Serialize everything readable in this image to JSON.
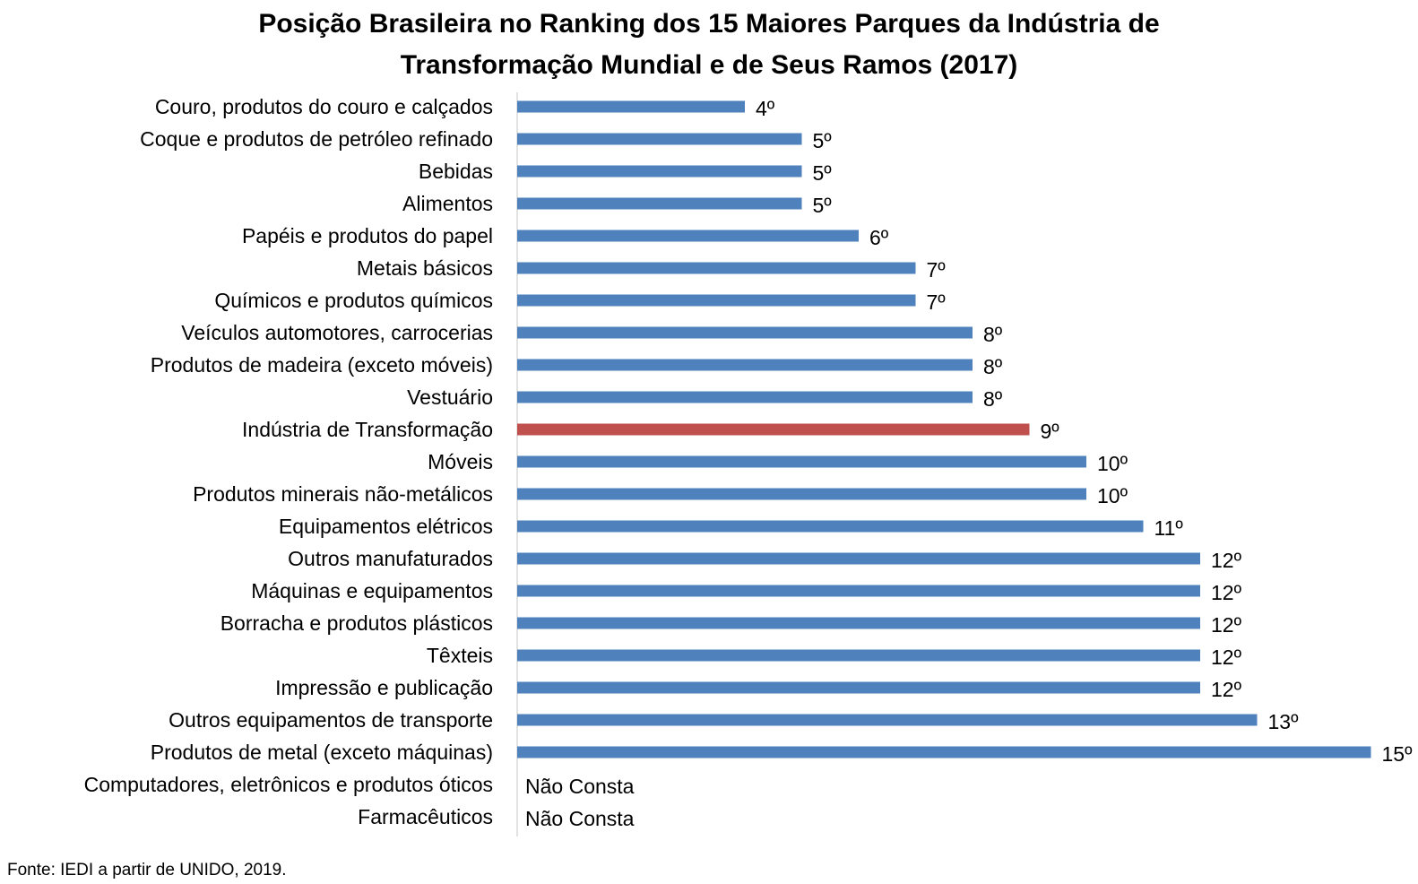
{
  "chart_data": {
    "type": "bar",
    "orientation": "horizontal",
    "title": "Posição Brasileira no Ranking dos 15 Maiores Parques da Indústria de Transformação Mundial e de Seus Ramos (2017)",
    "title_lines": [
      "Posição Brasileira no Ranking dos 15 Maiores Parques da Indústria de",
      "Transformação Mundial e de Seus Ramos (2017)"
    ],
    "xlabel": "",
    "ylabel": "",
    "xlim": [
      0,
      15
    ],
    "grid": false,
    "legend": "none",
    "colors": {
      "default": "#4F81BD",
      "highlight": "#C0504D"
    },
    "categories": [
      "Couro, produtos do couro e calçados",
      "Coque e produtos de petróleo refinado",
      "Bebidas",
      "Alimentos",
      "Papéis e produtos do papel",
      "Metais básicos",
      "Químicos e produtos químicos",
      "Veículos automotores, carrocerias",
      "Produtos de madeira (exceto móveis)",
      "Vestuário",
      "Indústria de Transformação",
      "Móveis",
      "Produtos minerais não-metálicos",
      "Equipamentos elétricos",
      "Outros manufaturados",
      "Máquinas e equipamentos",
      "Borracha e produtos plásticos",
      "Têxteis",
      "Impressão e publicação",
      "Outros equipamentos de transporte",
      "Produtos de metal (exceto máquinas)",
      "Computadores, eletrônicos e produtos óticos",
      "Farmacêuticos"
    ],
    "values": [
      4,
      5,
      5,
      5,
      6,
      7,
      7,
      8,
      8,
      8,
      9,
      10,
      10,
      11,
      12,
      12,
      12,
      12,
      12,
      13,
      15,
      null,
      null
    ],
    "data_labels": [
      "4º",
      "5º",
      "5º",
      "5º",
      "6º",
      "7º",
      "7º",
      "8º",
      "8º",
      "8º",
      "9º",
      "10º",
      "10º",
      "11º",
      "12º",
      "12º",
      "12º",
      "12º",
      "12º",
      "13º",
      "15º",
      "Não Consta",
      "Não Consta"
    ],
    "highlight_category": "Indústria de Transformação"
  },
  "source_note": "Fonte: IEDI a partir de UNIDO, 2019."
}
